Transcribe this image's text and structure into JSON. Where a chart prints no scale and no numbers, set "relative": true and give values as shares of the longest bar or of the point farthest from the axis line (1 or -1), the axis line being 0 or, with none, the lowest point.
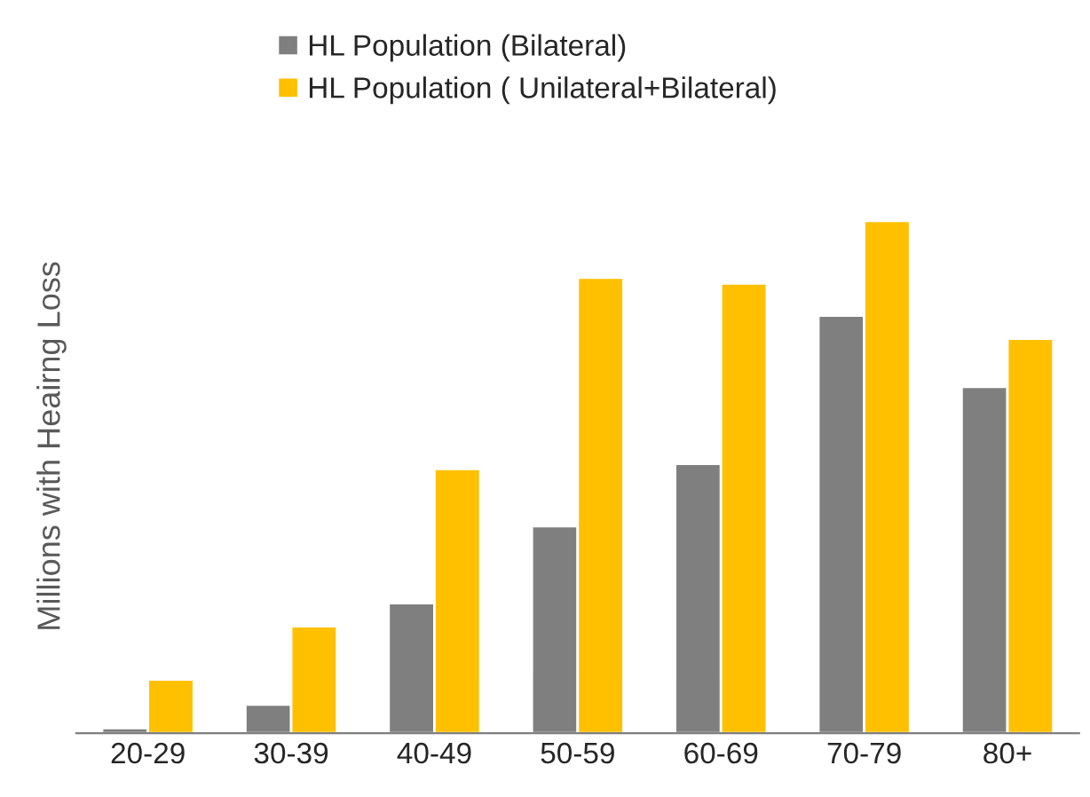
{
  "chart_data": {
    "type": "bar",
    "ylabel": "Millions with Heairng Loss",
    "categories": [
      "20-29",
      "30-39",
      "40-49",
      "50-59",
      "60-69",
      "70-79",
      "80+"
    ],
    "relative": true,
    "legend": "top",
    "grid": false,
    "series": [
      {
        "name": "HL Population (Bilateral)",
        "color": "#7f7f7f",
        "values": [
          0.01,
          0.056,
          0.254,
          0.404,
          0.526,
          0.815,
          0.676
        ]
      },
      {
        "name": "HL Population ( Unilateral+Bilateral)",
        "color": "#ffc000",
        "values": [
          0.105,
          0.209,
          0.516,
          0.889,
          0.878,
          1.0,
          0.77
        ]
      }
    ]
  }
}
